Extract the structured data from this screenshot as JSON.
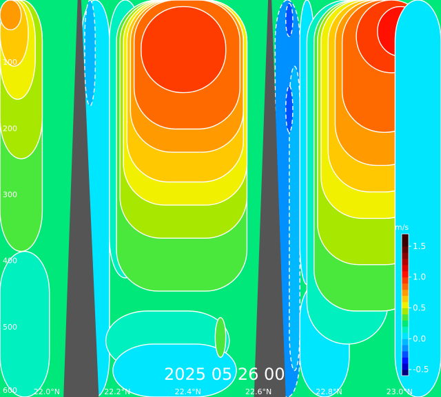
{
  "chart_data": {
    "type": "heatmap",
    "title": "2025 05 26 00",
    "units": "m/s",
    "x_axis": {
      "ticks": [
        {
          "value": 22.0,
          "label": "22.0°N"
        },
        {
          "value": 22.2,
          "label": "22.2°N"
        },
        {
          "value": 22.4,
          "label": "22.4°N"
        },
        {
          "value": 22.6,
          "label": "22.6°N"
        },
        {
          "value": 22.8,
          "label": "22.8°N"
        },
        {
          "value": 23.0,
          "label": "23.0°N"
        }
      ],
      "range": [
        21.85,
        23.1
      ]
    },
    "y_axis": {
      "ticks": [
        {
          "value": 100,
          "label": "100"
        },
        {
          "value": 200,
          "label": "200"
        },
        {
          "value": 300,
          "label": "300"
        },
        {
          "value": 400,
          "label": "400"
        },
        {
          "value": 500,
          "label": "500"
        },
        {
          "value": 600,
          "label": "600"
        }
      ],
      "range": [
        0,
        600
      ],
      "inverted": true
    },
    "colorbar": {
      "ticks": [
        {
          "value": 1.5,
          "label": "1.5"
        },
        {
          "value": 1.0,
          "label": "1.0"
        },
        {
          "value": 0.5,
          "label": "0.5"
        },
        {
          "value": 0.0,
          "label": "0.0"
        },
        {
          "value": -0.5,
          "label": "-0.5"
        }
      ],
      "range": [
        -0.6,
        1.7
      ],
      "levels": [
        {
          "min": -0.6,
          "color": "#00007a"
        },
        {
          "min": -0.5,
          "color": "#0000c8"
        },
        {
          "min": -0.4,
          "color": "#0014ff"
        },
        {
          "min": -0.3,
          "color": "#0050ff"
        },
        {
          "min": -0.2,
          "color": "#0090ff"
        },
        {
          "min": -0.1,
          "color": "#00b8ff"
        },
        {
          "min": 0.0,
          "color": "#00e6ff"
        },
        {
          "min": 0.1,
          "color": "#00f0c0"
        },
        {
          "min": 0.2,
          "color": "#00e87a"
        },
        {
          "min": 0.3,
          "color": "#4ae83c"
        },
        {
          "min": 0.4,
          "color": "#a8e800"
        },
        {
          "min": 0.5,
          "color": "#f0f000"
        },
        {
          "min": 0.6,
          "color": "#ffc800"
        },
        {
          "min": 0.7,
          "color": "#ff9a00"
        },
        {
          "min": 0.8,
          "color": "#ff6a00"
        },
        {
          "min": 0.9,
          "color": "#ff3c00"
        },
        {
          "min": 1.0,
          "color": "#ff1000"
        },
        {
          "min": 1.1,
          "color": "#e00000"
        },
        {
          "min": 1.2,
          "color": "#b40000"
        },
        {
          "min": 1.3,
          "color": "#8a0000"
        },
        {
          "min": 1.4,
          "color": "#600000"
        },
        {
          "min": 1.5,
          "color": "#3a0000"
        }
      ]
    },
    "background_level": 0.2,
    "regions": [
      {
        "level": 0.1,
        "x": [
          21.85,
          21.99
        ],
        "y": [
          380,
          600
        ]
      },
      {
        "level": 0.3,
        "x": [
          21.85,
          21.97
        ],
        "y": [
          0,
          380
        ]
      },
      {
        "level": 0.4,
        "x": [
          21.85,
          21.97
        ],
        "y": [
          0,
          240
        ]
      },
      {
        "level": 0.5,
        "x": [
          21.85,
          21.95
        ],
        "y": [
          0,
          150
        ]
      },
      {
        "level": 0.6,
        "x": [
          21.85,
          21.93
        ],
        "y": [
          0,
          100
        ]
      },
      {
        "level": 0.7,
        "x": [
          21.85,
          21.91
        ],
        "y": [
          0,
          45
        ]
      },
      {
        "level": 0.0,
        "x": [
          22.08,
          22.16
        ],
        "y": [
          0,
          600
        ]
      },
      {
        "level": -0.1,
        "x": [
          22.09,
          22.12
        ],
        "y": [
          0,
          160
        ]
      },
      {
        "level": 0.1,
        "x": [
          22.15,
          22.5
        ],
        "y": [
          470,
          560
        ]
      },
      {
        "level": 0.0,
        "x": [
          22.17,
          22.52
        ],
        "y": [
          520,
          600
        ]
      },
      {
        "level": 0.1,
        "x": [
          22.16,
          22.25
        ],
        "y": [
          0,
          420
        ]
      },
      {
        "level": 0.3,
        "x": [
          22.18,
          22.55
        ],
        "y": [
          0,
          440
        ]
      },
      {
        "level": 0.4,
        "x": [
          22.19,
          22.55
        ],
        "y": [
          0,
          360
        ]
      },
      {
        "level": 0.5,
        "x": [
          22.2,
          22.55
        ],
        "y": [
          0,
          310
        ]
      },
      {
        "level": 0.6,
        "x": [
          22.21,
          22.54
        ],
        "y": [
          0,
          275
        ]
      },
      {
        "level": 0.7,
        "x": [
          22.22,
          22.54
        ],
        "y": [
          0,
          230
        ]
      },
      {
        "level": 0.8,
        "x": [
          22.23,
          22.53
        ],
        "y": [
          0,
          195
        ]
      },
      {
        "level": 0.9,
        "x": [
          22.25,
          22.49
        ],
        "y": [
          10,
          140
        ]
      },
      {
        "level": 0.3,
        "x": [
          22.46,
          22.49
        ],
        "y": [
          480,
          540
        ]
      },
      {
        "level": -0.2,
        "x": [
          22.63,
          22.7
        ],
        "y": [
          0,
          600
        ]
      },
      {
        "level": -0.1,
        "x": [
          22.67,
          22.7
        ],
        "y": [
          100,
          560
        ]
      },
      {
        "level": -0.3,
        "x": [
          22.66,
          22.68
        ],
        "y": [
          130,
          200
        ]
      },
      {
        "level": -0.3,
        "x": [
          22.66,
          22.68
        ],
        "y": [
          5,
          55
        ]
      },
      {
        "level": 0.0,
        "x": [
          22.7,
          22.84
        ],
        "y": [
          420,
          600
        ]
      },
      {
        "level": 0.0,
        "x": [
          22.7,
          22.74
        ],
        "y": [
          0,
          430
        ]
      },
      {
        "level": 0.1,
        "x": [
          22.72,
          22.95
        ],
        "y": [
          0,
          520
        ]
      },
      {
        "level": 0.3,
        "x": [
          22.74,
          23.05
        ],
        "y": [
          0,
          470
        ]
      },
      {
        "level": 0.4,
        "x": [
          22.75,
          23.06
        ],
        "y": [
          0,
          400
        ]
      },
      {
        "level": 0.5,
        "x": [
          22.76,
          23.06
        ],
        "y": [
          0,
          330
        ]
      },
      {
        "level": 0.6,
        "x": [
          22.78,
          23.06
        ],
        "y": [
          0,
          290
        ]
      },
      {
        "level": 0.7,
        "x": [
          22.8,
          23.06
        ],
        "y": [
          0,
          250
        ]
      },
      {
        "level": 0.8,
        "x": [
          22.82,
          23.06
        ],
        "y": [
          0,
          200
        ]
      },
      {
        "level": 0.9,
        "x": [
          22.86,
          23.06
        ],
        "y": [
          0,
          110
        ]
      },
      {
        "level": 1.0,
        "x": [
          22.92,
          23.05
        ],
        "y": [
          10,
          85
        ]
      },
      {
        "level": 0.0,
        "x": [
          22.97,
          23.1
        ],
        "y": [
          0,
          600
        ]
      }
    ],
    "land_masks": [
      {
        "name": "ridge-1",
        "color": "#555555",
        "x_top": [
          22.07,
          22.08
        ],
        "x_bottom": [
          22.03,
          22.13
        ],
        "y_top": 0
      },
      {
        "name": "ridge-2",
        "color": "#555555",
        "x_top": [
          22.61,
          22.62
        ],
        "x_bottom": [
          22.57,
          22.66
        ],
        "y_top": 0
      }
    ]
  }
}
